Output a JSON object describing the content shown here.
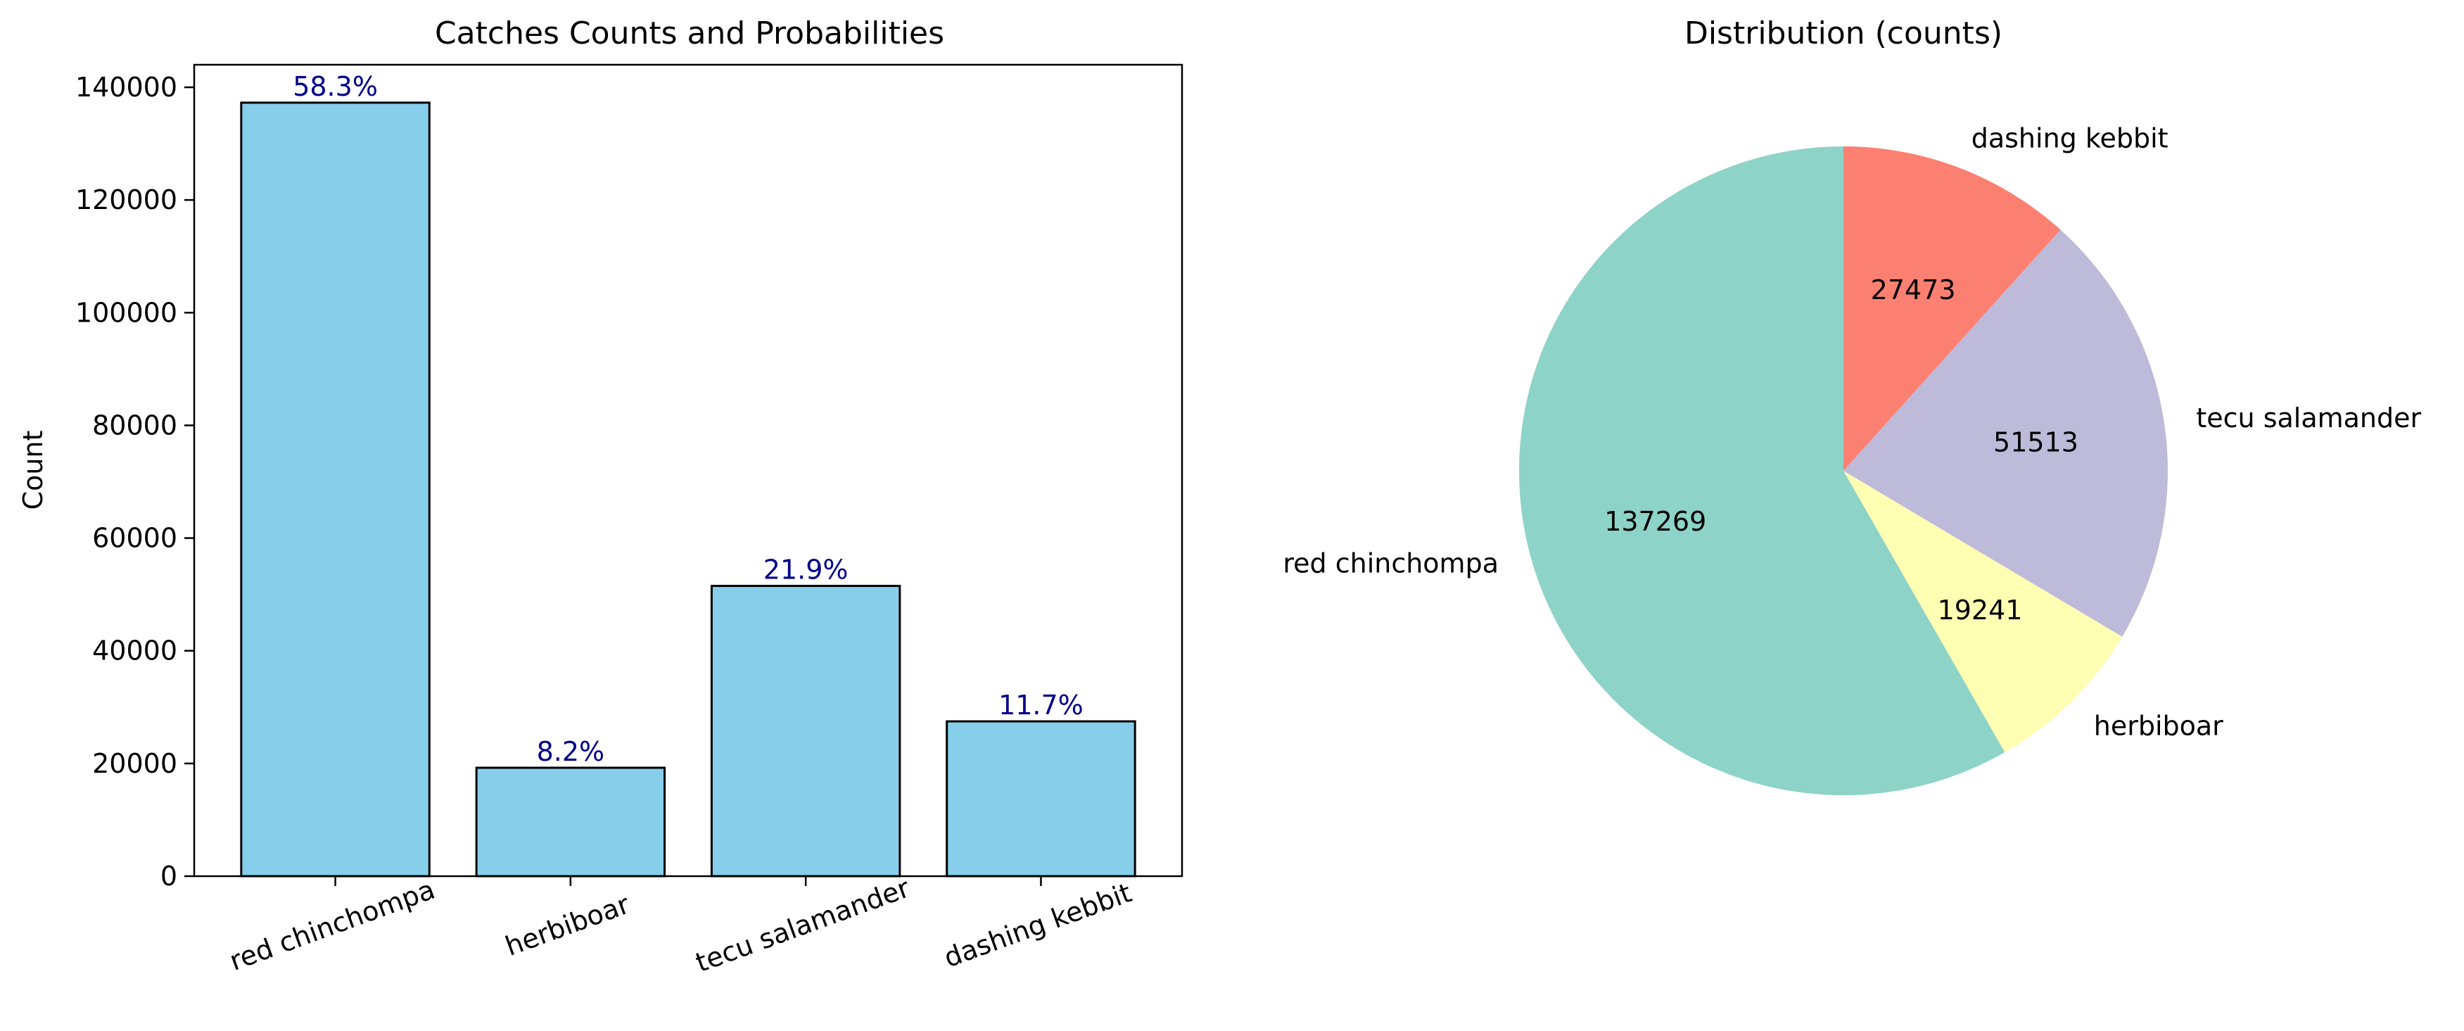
{
  "chart_data": [
    {
      "type": "bar",
      "title": "Catches Counts and Probabilities",
      "xlabel": "",
      "ylabel": "Count",
      "categories": [
        "red chinchompa",
        "herbiboar",
        "tecu salamander",
        "dashing kebbit"
      ],
      "values": [
        137269,
        19241,
        51513,
        27473
      ],
      "bar_labels": [
        "58.3%",
        "8.2%",
        "21.9%",
        "11.7%"
      ],
      "ylim": [
        0,
        144000
      ],
      "yticks": [
        0,
        20000,
        40000,
        60000,
        80000,
        100000,
        120000,
        140000
      ],
      "grid": false,
      "bar_color": "#87ceeb",
      "bar_edge_color": "#000000",
      "label_color": "#00008b"
    },
    {
      "type": "pie",
      "title": "Distribution (counts)",
      "labels": [
        "red chinchompa",
        "herbiboar",
        "tecu salamander",
        "dashing kebbit"
      ],
      "values": [
        137269,
        19241,
        51513,
        27473
      ],
      "value_labels": [
        "137269",
        "19241",
        "51513",
        "27473"
      ],
      "colors": [
        "#8dd3c7",
        "#ffffb3",
        "#bebada",
        "#fb8072"
      ],
      "start_angle_deg": 90,
      "direction": "counterclockwise"
    }
  ]
}
